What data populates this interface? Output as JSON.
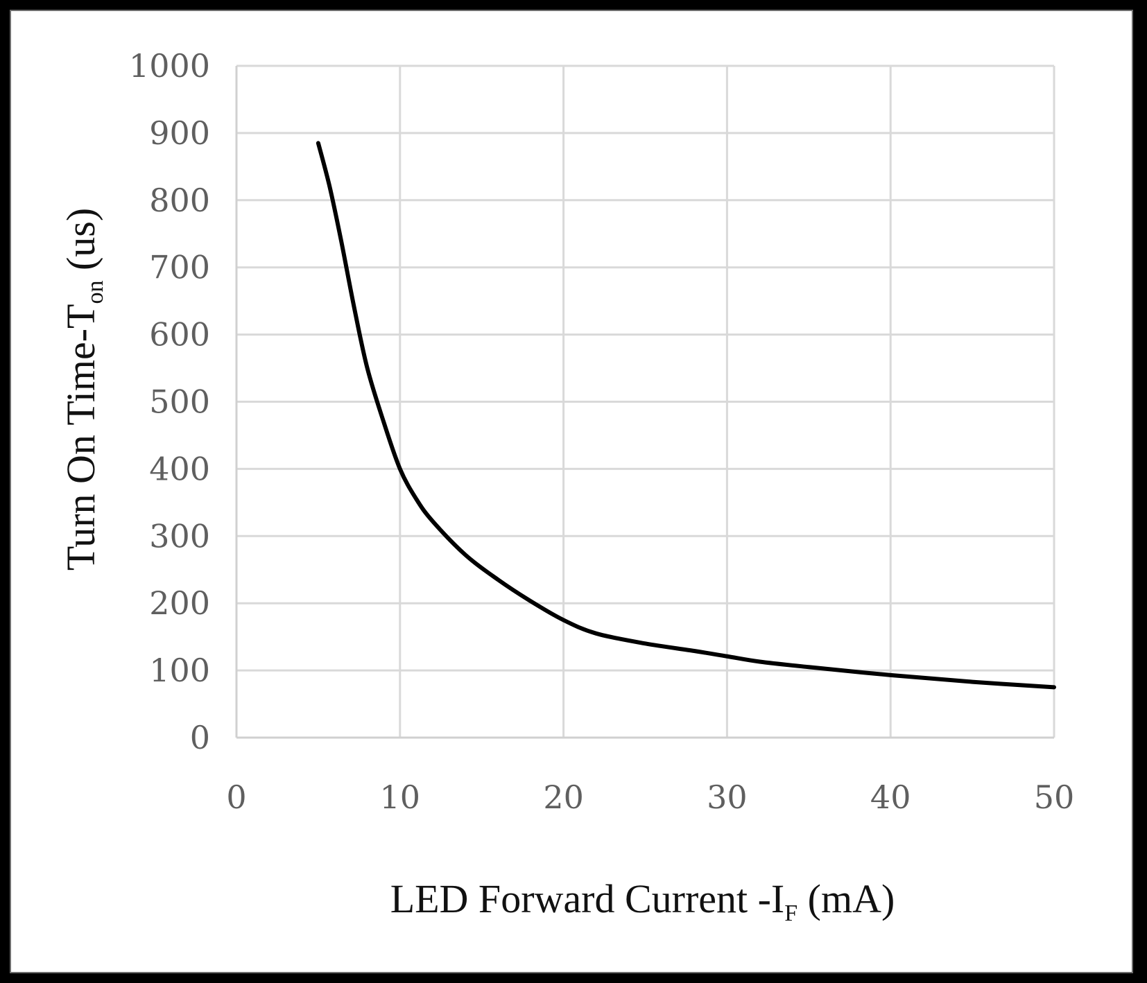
{
  "chart_data": {
    "type": "line",
    "title": "",
    "xlabel": {
      "main": "LED Forward Current -I",
      "subscript": "F",
      "unit": " (mA)"
    },
    "ylabel": {
      "main": "Turn On Time-T",
      "subscript": "on",
      "unit": " (us)"
    },
    "xlim": [
      0,
      50
    ],
    "ylim": [
      0,
      1000
    ],
    "xticks": [
      "0",
      "10",
      "20",
      "30",
      "40",
      "50"
    ],
    "yticks": [
      "0",
      "100",
      "200",
      "300",
      "400",
      "500",
      "600",
      "700",
      "800",
      "900",
      "1000"
    ],
    "grid": true,
    "line_color": "#000000",
    "series": [
      {
        "name": "Turn On Time",
        "x": [
          5,
          5.7,
          6.4,
          7.2,
          8,
          9,
          10,
          11,
          12,
          14,
          16,
          18,
          20,
          22,
          25,
          28,
          30,
          32,
          35,
          40,
          45,
          50
        ],
        "y": [
          885,
          820,
          740,
          640,
          550,
          470,
          400,
          355,
          322,
          272,
          235,
          203,
          175,
          155,
          140,
          129,
          121,
          113,
          105,
          93,
          83,
          75
        ]
      }
    ]
  }
}
